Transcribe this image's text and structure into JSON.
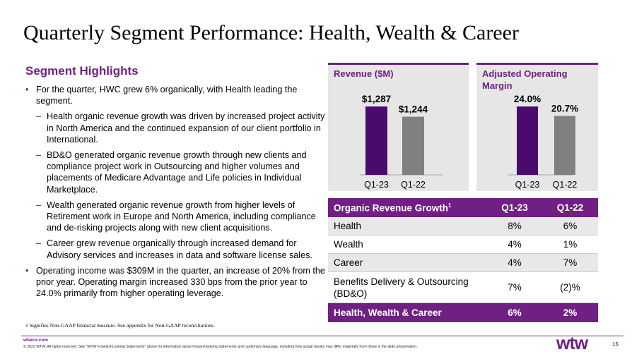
{
  "title": "Quarterly Segment Performance: Health, Wealth & Career",
  "highlights": {
    "heading": "Segment Highlights",
    "bullet_1": "For the quarter, HWC grew 6% organically, with Health leading the segment.",
    "sub_1": "Health organic revenue growth was driven by increased project activity in North America and the continued expansion of our client portfolio in International.",
    "sub_2": "BD&O generated organic revenue growth through new clients and compliance project work in Outsourcing and higher volumes and placements of Medicare Advantage and Life policies in Individual Marketplace.",
    "sub_3": "Wealth generated organic revenue growth from higher levels of Retirement work in Europe and North America, including compliance and de-risking projects along with new client acquisitions.",
    "sub_4": "Career grew revenue organically through increased demand for Advisory services and increases in data and software license sales.",
    "bullet_2": "Operating income was $309M in the quarter, an increase of 20% from the prior year. Operating margin increased 330 bps from the prior year to 24.0% primarily from higher operating leverage.",
    "bullet_marker": "•",
    "sub_marker": "–"
  },
  "footnote": "1 Signifies Non-GAAP financial measure. See appendix for Non-GAAP reconciliations.",
  "chart_data": [
    {
      "type": "bar",
      "title": "Revenue ($M)",
      "categories": [
        "Q1-23",
        "Q1-22"
      ],
      "values": [
        1287,
        1244
      ],
      "value_labels": [
        "$1,287",
        "$1,244"
      ],
      "colors": [
        "#4b0a6e",
        "#808080"
      ]
    },
    {
      "type": "bar",
      "title": "Adjusted Operating Margin",
      "categories": [
        "Q1-23",
        "Q1-22"
      ],
      "values": [
        24.0,
        20.7
      ],
      "value_labels": [
        "24.0%",
        "20.7%"
      ],
      "colors": [
        "#4b0a6e",
        "#808080"
      ]
    }
  ],
  "table": {
    "header": {
      "label": "Organic Revenue Growth",
      "sup": "1",
      "col1": "Q1-23",
      "col2": "Q1-22"
    },
    "rows": [
      {
        "label": "Health",
        "q123": "8%",
        "q122": "6%"
      },
      {
        "label": "Wealth",
        "q123": "4%",
        "q122": "1%"
      },
      {
        "label": "Career",
        "q123": "4%",
        "q122": "7%"
      },
      {
        "label": "Benefits Delivery & Outsourcing",
        "label_2": "(BD&O)",
        "q123": "7%",
        "q122": "(2)%"
      }
    ],
    "total": {
      "label": "Health, Wealth & Career",
      "q123": "6%",
      "q122": "2%"
    }
  },
  "footer": {
    "site": "wtwco.com",
    "copyright": "© 2023 WTW. All rights reserved. See \"WTW Forward-Looking Statements\" above for information about forward-looking statements and cautionary language, including how actual results may differ materially from those in the slide presentation.",
    "logo": "wtw",
    "page": "15"
  },
  "colors": {
    "accent": "#702082",
    "bar_current": "#4b0a6e",
    "bar_prior": "#808080",
    "panel_bg": "#e6e6e6"
  }
}
